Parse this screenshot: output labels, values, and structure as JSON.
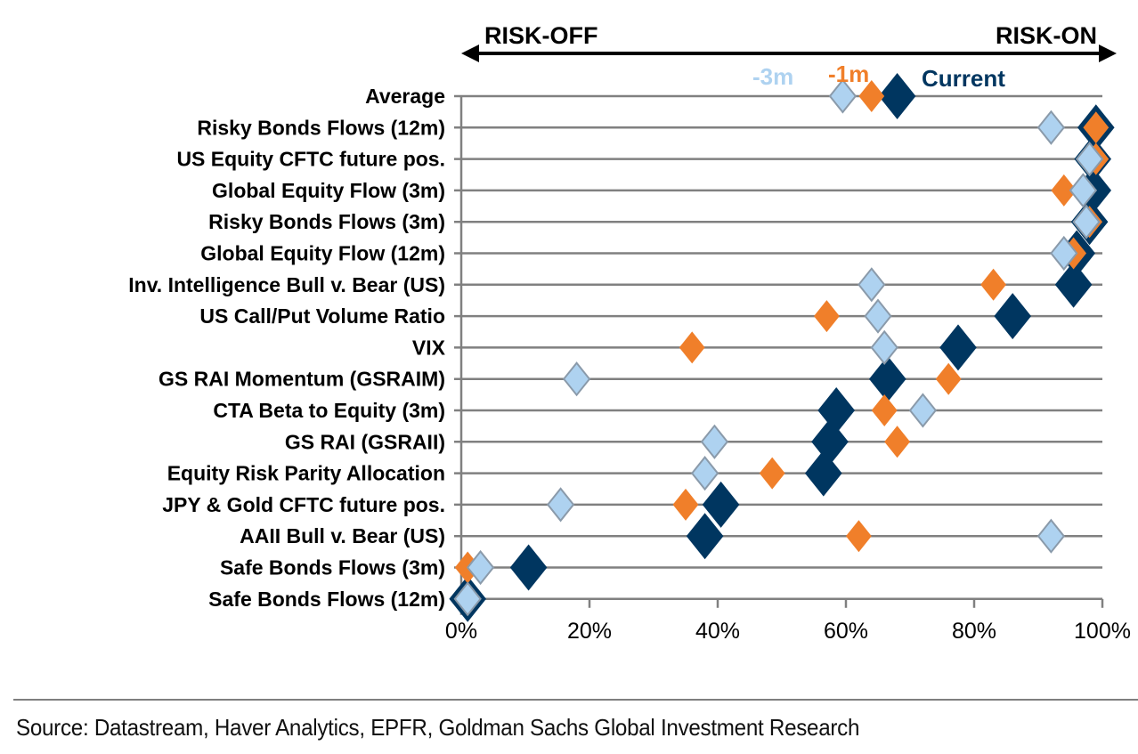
{
  "chart_data": {
    "type": "scatter",
    "orientation": "horizontal-dot-plot",
    "title": "",
    "xlabel": "",
    "ylabel": "",
    "xlim": [
      0,
      100
    ],
    "x_ticks": [
      "0%",
      "20%",
      "40%",
      "60%",
      "80%",
      "100%"
    ],
    "x_tick_values": [
      0,
      20,
      40,
      60,
      80,
      100
    ],
    "grid": true,
    "direction_labels": {
      "left": "RISK-OFF",
      "right": "RISK-ON"
    },
    "legend_placement": "top",
    "categories": [
      "Average",
      "Risky Bonds Flows (12m)",
      "US Equity CFTC future pos.",
      "Global Equity Flow (3m)",
      "Risky Bonds Flows (3m)",
      "Global Equity Flow (12m)",
      "Inv. Intelligence Bull v. Bear (US)",
      "US Call/Put Volume Ratio",
      "VIX",
      "GS RAI Momentum (GSRAIM)",
      "CTA Beta to Equity (3m)",
      "GS RAI (GSRAII)",
      "Equity Risk Parity Allocation",
      "JPY & Gold CFTC future pos.",
      "AAII Bull v. Bear (US)",
      "Safe Bonds Flows (3m)",
      "Safe Bonds Flows (12m)"
    ],
    "series": [
      {
        "name": "-3m",
        "color": "#aed2f0",
        "stroke": "#8a9aaa",
        "values": [
          59.5,
          92,
          98,
          97,
          97.5,
          94,
          64,
          65,
          66,
          18,
          72,
          39.5,
          38,
          15.5,
          92,
          3,
          1
        ]
      },
      {
        "name": "-1m",
        "color": "#f07f2a",
        "stroke": "none",
        "values": [
          64,
          99,
          99,
          94,
          98,
          95.5,
          83,
          57,
          36,
          76,
          66,
          68,
          48.5,
          35,
          62,
          1,
          1
        ]
      },
      {
        "name": "Current",
        "color": "#003660",
        "stroke": "none",
        "values": [
          68,
          99,
          98.5,
          98.5,
          98,
          96,
          95.5,
          86,
          77.5,
          66.5,
          58.5,
          57.5,
          56.5,
          40.5,
          38,
          10.5,
          1
        ]
      }
    ],
    "source": "Source: Datastream, Haver Analytics, EPFR, Goldman Sachs Global Investment Research"
  },
  "colors": {
    "gridline": "#808080",
    "axis": "#808080",
    "arrow": "#000000"
  }
}
